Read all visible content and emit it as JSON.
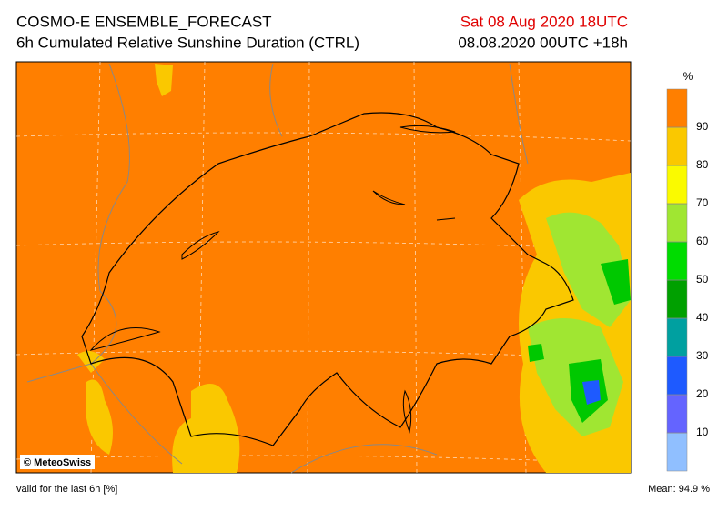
{
  "header": {
    "title": "COSMO-E ENSEMBLE_FORECAST",
    "subtitle": "6h Cumulated Relative Sunshine Duration (CTRL)",
    "valid_time": "Sat 08 Aug 2020 18UTC",
    "run": "08.08.2020 00UTC +18h"
  },
  "map": {
    "credit": "© MeteoSwiss"
  },
  "colorbar": {
    "unit": "%",
    "ticks": [
      10,
      20,
      30,
      40,
      50,
      60,
      70,
      80,
      90
    ],
    "colors": [
      "#90bfff",
      "#6464ff",
      "#1e5aff",
      "#00a0a0",
      "#00a000",
      "#00dc00",
      "#a0e632",
      "#fafa00",
      "#fac800",
      "#ff7f00"
    ]
  },
  "footer": {
    "validity": "valid for the last 6h [%]",
    "mean": "Mean:  94.9 %"
  }
}
